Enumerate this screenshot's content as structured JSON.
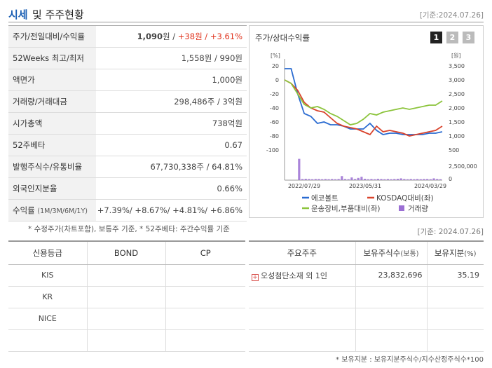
{
  "header": {
    "title_a": "시세",
    "title_b": "및 주주현황",
    "date": "[기준:2024.07.26]"
  },
  "info": {
    "rows": [
      {
        "label": "주가/전일대비/수익률",
        "value_main": "1,090",
        "value_unit": "원 / ",
        "value_rest": "+38원 / +3.61%"
      },
      {
        "label": "52Weeks 최고/최저",
        "value": "1,558원 / 990원"
      },
      {
        "label": "액면가",
        "value": "1,000원"
      },
      {
        "label": "거래량/거래대금",
        "value": "298,486주 / 3억원"
      },
      {
        "label": "시가총액",
        "value": "738억원"
      },
      {
        "label": "52주베타",
        "value": "0.67"
      },
      {
        "label": "발행주식수/유통비율",
        "value": "67,730,338주 / 64.81%"
      },
      {
        "label": "외국인지분율",
        "value": "0.66%"
      },
      {
        "label": "수익률",
        "label_small": "(1M/3M/6M/1Y)",
        "value": "+7.39%/ +8.67%/ +4.81%/ +6.86%"
      }
    ],
    "note": "* 수정주가(차트포함), 보통주 기준, * 52주베타: 주간수익률 기준"
  },
  "chart_box": {
    "title": "주가/상대수익률",
    "tabs": [
      "1",
      "2",
      "3"
    ]
  },
  "chart_data": {
    "type": "line",
    "left_axis_label": "[%]",
    "right_axis_label": "[원]",
    "left_ticks": [
      20,
      0,
      -20,
      -40,
      -60,
      -80,
      -100
    ],
    "right_ticks": [
      "3,500",
      "3,000",
      "2,500",
      "2,000",
      "1,500",
      "1,000",
      "500"
    ],
    "volume_ticks": [
      "2,500,000",
      "0"
    ],
    "x_labels": [
      "2022/07/29",
      "2023/05/31",
      "2024/03/29"
    ],
    "legend": [
      "에코볼트",
      "KOSDAQ대비(좌)",
      "운송장비,부품대비(좌)",
      "거래량"
    ],
    "colors": {
      "stock": "#2a6bd1",
      "kosdaq": "#d9432c",
      "sector": "#8cc43c",
      "volume": "#9b6fd4"
    },
    "series": [
      {
        "values": [
          16,
          16,
          -20,
          -48,
          -52,
          -62,
          -60,
          -64,
          -64,
          -66,
          -70,
          -70,
          -70,
          -62,
          -72,
          -78,
          -76,
          -76,
          -78,
          -78,
          -78,
          -78,
          -76,
          -76,
          -74
        ]
      },
      {
        "values": [
          0,
          -5,
          -15,
          -32,
          -40,
          -44,
          -46,
          -54,
          -62,
          -66,
          -68,
          -70,
          -74,
          -78,
          -66,
          -74,
          -72,
          -74,
          -76,
          -80,
          -78,
          -76,
          -74,
          -72,
          -66
        ]
      },
      {
        "values": [
          0,
          -5,
          -20,
          -35,
          -40,
          -38,
          -42,
          -48,
          -52,
          -58,
          -64,
          -62,
          -56,
          -48,
          -50,
          -46,
          -44,
          -42,
          -40,
          -42,
          -40,
          -38,
          -36,
          -36,
          -30
        ]
      }
    ],
    "volume": [
      0,
      0,
      0,
      0,
      0.95,
      0.05,
      0.06,
      0.05,
      0.04,
      0.05,
      0.05,
      0.04,
      0.05,
      0.04,
      0.05,
      0.04,
      0.05,
      0.18,
      0.05,
      0.04,
      0.12,
      0.05,
      0.1,
      0.15,
      0.06,
      0.04,
      0.05,
      0.04,
      0.06,
      0.05,
      0.04,
      0.05,
      0.04,
      0.05,
      0.06,
      0.08,
      0.05,
      0.04,
      0.05,
      0.04,
      0.05,
      0.04,
      0.05,
      0.05,
      0.04,
      0.08,
      0.05,
      0.04
    ]
  },
  "credit": {
    "headers": [
      "신용등급",
      "BOND",
      "CP"
    ],
    "rows": [
      [
        "KIS",
        "",
        ""
      ],
      [
        "KR",
        "",
        ""
      ],
      [
        "NICE",
        "",
        ""
      ],
      [
        "",
        "",
        ""
      ]
    ]
  },
  "holders": {
    "date": "[기준: 2024.07.26]",
    "headers": {
      "name": "주요주주",
      "shares": "보유주식수",
      "shares_unit": "(보통)",
      "ratio": "보유지분",
      "ratio_unit": "(%)"
    },
    "rows": [
      {
        "name": "오성첨단소재 외 1인",
        "shares": "23,832,696",
        "ratio": "35.19"
      }
    ],
    "note": "* 보유지분 : 보유지분주식수/지수산정주식수*100"
  }
}
